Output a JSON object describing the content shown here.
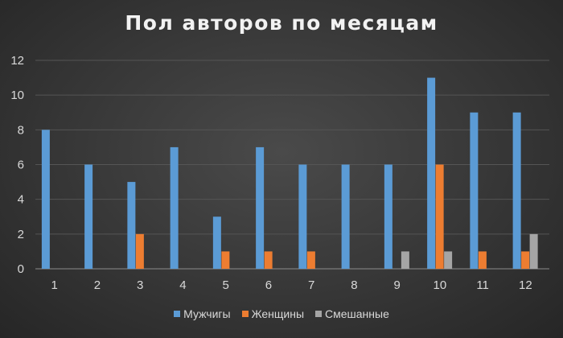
{
  "chart_data": {
    "type": "bar",
    "title": "Пол авторов по месяцам",
    "xlabel": "",
    "ylabel": "",
    "categories": [
      "1",
      "2",
      "3",
      "4",
      "5",
      "6",
      "7",
      "8",
      "9",
      "10",
      "11",
      "12"
    ],
    "series": [
      {
        "name": "Мужчигы",
        "color": "#5b9bd5",
        "values": [
          8,
          6,
          5,
          7,
          3,
          7,
          6,
          6,
          6,
          11,
          9,
          9
        ]
      },
      {
        "name": "Женщины",
        "color": "#ed7d31",
        "values": [
          0,
          0,
          2,
          0,
          1,
          1,
          1,
          0,
          0,
          6,
          1,
          1
        ]
      },
      {
        "name": "Смешанные",
        "color": "#a5a5a5",
        "values": [
          0,
          0,
          0,
          0,
          0,
          0,
          0,
          0,
          1,
          1,
          0,
          2
        ]
      }
    ],
    "ylim": [
      0,
      12
    ],
    "yticks": [
      "0",
      "2",
      "4",
      "6",
      "8",
      "10",
      "12"
    ],
    "grid": true,
    "legend_position": "bottom"
  }
}
